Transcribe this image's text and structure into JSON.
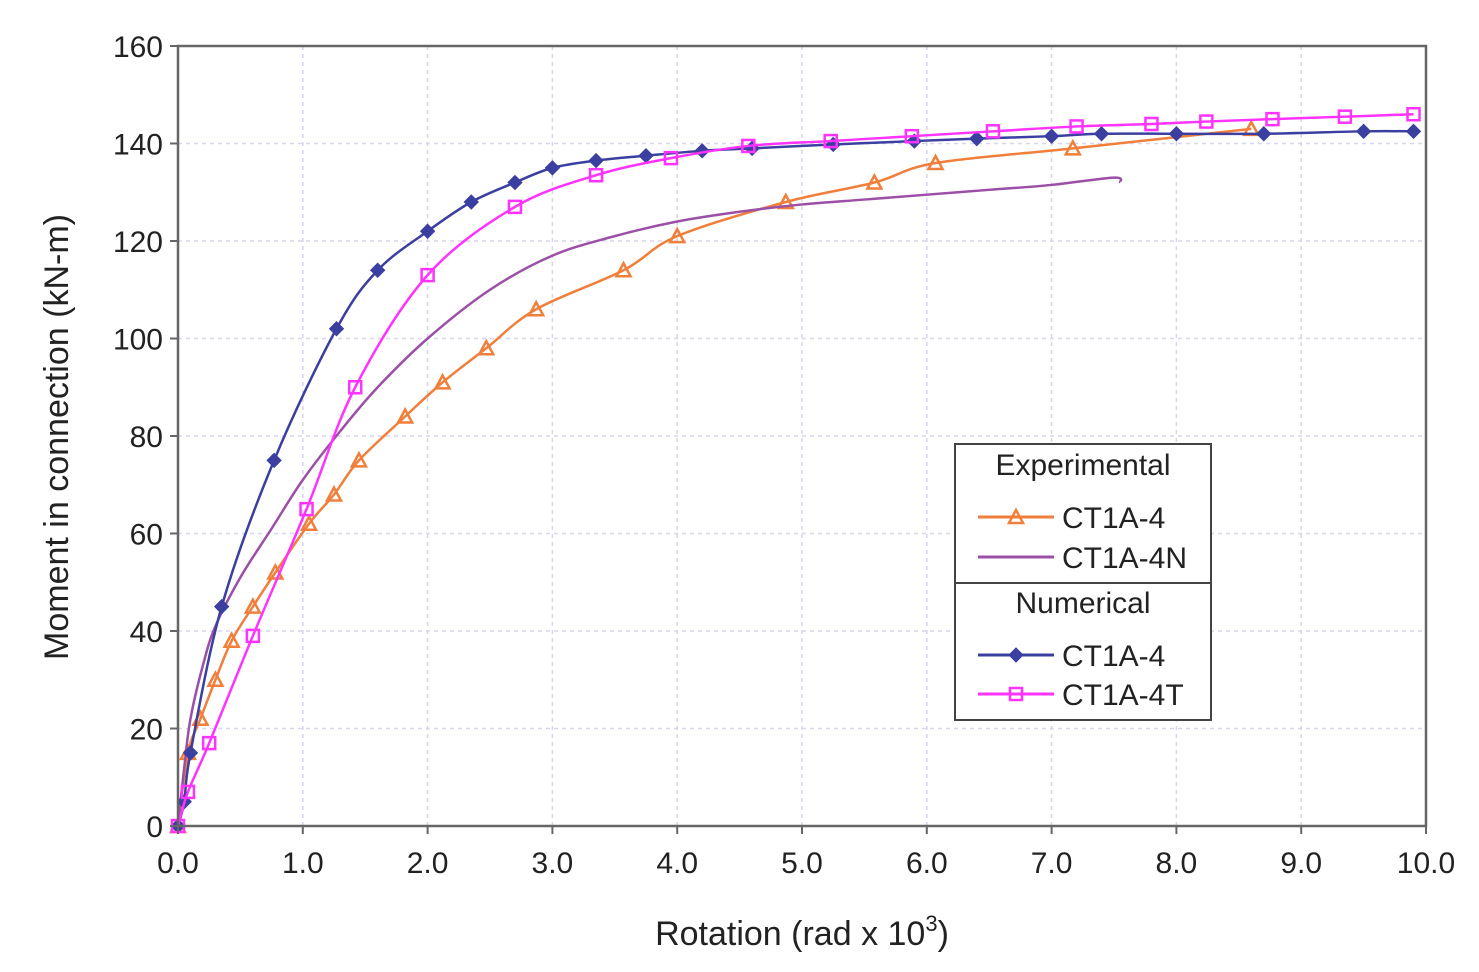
{
  "chart_data": {
    "type": "line",
    "title": "",
    "xlabel": "Rotation (rad x 10",
    "xlabel_sup": "3",
    "xlabel_end": ")",
    "ylabel": "Moment in connection (kN-m)",
    "xlim": [
      0,
      10
    ],
    "ylim": [
      0,
      160
    ],
    "x_ticks": [
      "0.0",
      "1.0",
      "2.0",
      "3.0",
      "4.0",
      "5.0",
      "6.0",
      "7.0",
      "8.0",
      "9.0",
      "10.0"
    ],
    "y_ticks": [
      "0",
      "20",
      "40",
      "60",
      "80",
      "100",
      "120",
      "140",
      "160"
    ],
    "grid": true,
    "legend_position": "lower-right",
    "legend_groups": [
      {
        "title": "Experimental",
        "series_index": [
          0,
          1
        ]
      },
      {
        "title": "Numerical",
        "series_index": [
          2,
          3
        ]
      }
    ],
    "series": [
      {
        "name": "CT1A-4",
        "group": "Experimental",
        "color": "#f07f3c",
        "marker": "triangle",
        "x": [
          0.0,
          0.08,
          0.18,
          0.3,
          0.43,
          0.6,
          0.78,
          1.05,
          1.25,
          1.45,
          1.82,
          2.12,
          2.47,
          2.87,
          3.57,
          4.0,
          4.87,
          5.58,
          6.07,
          7.17,
          8.6
        ],
        "y": [
          0,
          15,
          22,
          30,
          38,
          45,
          52,
          62,
          68,
          75,
          84,
          91,
          98,
          106,
          114,
          121,
          128,
          132,
          136,
          139,
          143
        ]
      },
      {
        "name": "CT1A-4N",
        "group": "Experimental",
        "color": "#9c4fa6",
        "marker": "none",
        "x": [
          0.0,
          0.05,
          0.1,
          0.2,
          0.3,
          0.5,
          0.75,
          1.0,
          1.3,
          1.6,
          2.0,
          2.5,
          3.0,
          3.5,
          4.0,
          4.5,
          5.0,
          5.5,
          6.0,
          6.5,
          7.0,
          7.5,
          7.55
        ],
        "y": [
          0,
          12,
          22,
          33,
          41,
          51,
          61,
          71,
          81,
          90,
          100,
          110,
          117,
          121,
          124,
          126,
          127.5,
          128.5,
          129.5,
          130.5,
          131.5,
          133,
          132
        ]
      },
      {
        "name": "CT1A-4",
        "group": "Numerical",
        "color": "#3a3fa0",
        "marker": "diamond",
        "x": [
          0.0,
          0.05,
          0.1,
          0.35,
          0.77,
          1.27,
          1.6,
          2.0,
          2.35,
          2.7,
          3.0,
          3.35,
          3.75,
          4.2,
          4.6,
          5.25,
          5.9,
          6.4,
          7.0,
          7.4,
          8.0,
          8.7,
          9.5,
          9.9
        ],
        "y": [
          0,
          5,
          15,
          45,
          75,
          102,
          114,
          122,
          128,
          132,
          135,
          136.5,
          137.5,
          138.5,
          139,
          139.8,
          140.5,
          141,
          141.5,
          142,
          142,
          142,
          142.5,
          142.5
        ]
      },
      {
        "name": "CT1A-4T",
        "group": "Numerical",
        "color": "#ff33ff",
        "marker": "square",
        "x": [
          0.0,
          0.08,
          0.25,
          0.6,
          1.03,
          1.42,
          2.0,
          2.7,
          3.35,
          3.95,
          4.57,
          5.23,
          5.88,
          6.53,
          7.2,
          7.8,
          8.24,
          8.77,
          9.35,
          9.9
        ],
        "y": [
          0,
          7,
          17,
          39,
          65,
          90,
          113,
          127,
          133.5,
          137,
          139.5,
          140.5,
          141.5,
          142.5,
          143.5,
          144,
          144.5,
          145,
          145.5,
          146
        ]
      }
    ]
  }
}
